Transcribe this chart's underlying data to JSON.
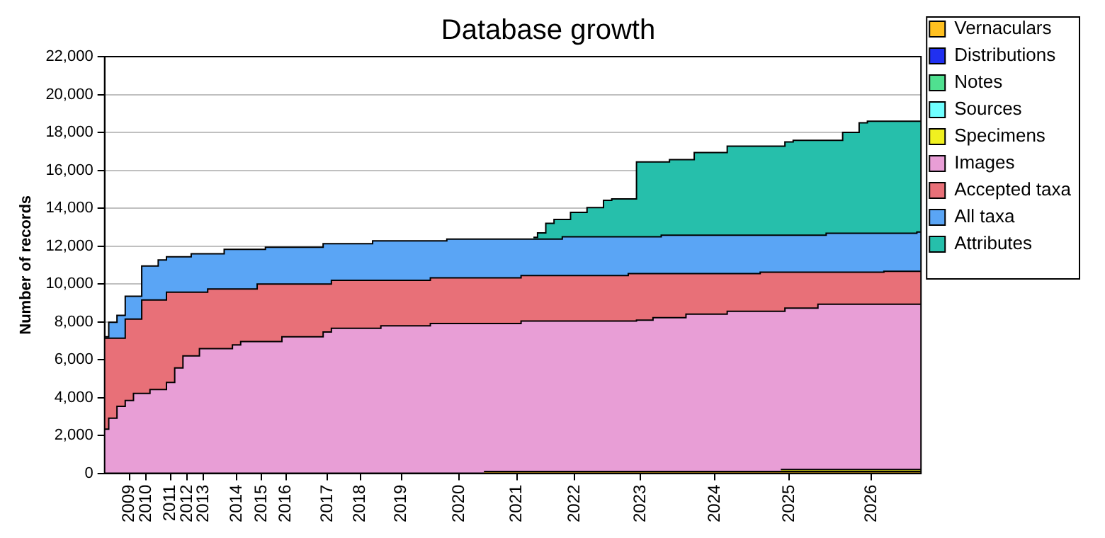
{
  "chart_data": {
    "type": "area",
    "title": "Database growth",
    "ylabel": "Number of records",
    "categories": [
      null,
      null,
      null,
      "2009",
      null,
      "2010",
      null,
      null,
      "2011",
      null,
      "2012",
      null,
      "2013",
      null,
      null,
      null,
      "2014",
      null,
      null,
      "2015",
      null,
      null,
      "2016",
      null,
      null,
      null,
      null,
      "2017",
      null,
      null,
      null,
      "2018",
      null,
      null,
      null,
      null,
      "2019",
      null,
      null,
      null,
      null,
      null,
      null,
      "2020",
      null,
      null,
      null,
      null,
      null,
      null,
      "2021",
      null,
      null,
      null,
      null,
      null,
      null,
      "2022",
      null,
      null,
      null,
      null,
      null,
      null,
      null,
      "2023",
      null,
      null,
      null,
      null,
      null,
      null,
      null,
      null,
      "2024",
      null,
      null,
      null,
      null,
      null,
      null,
      null,
      null,
      "2025",
      null,
      null,
      null,
      null,
      null,
      null,
      null,
      null,
      null,
      "2026",
      null,
      null,
      null,
      null,
      null,
      null
    ],
    "ylim": [
      0,
      22000
    ],
    "yticks": [
      {
        "value": 0,
        "label": "0"
      },
      {
        "value": 2000,
        "label": "2,000"
      },
      {
        "value": 4000,
        "label": "4,000"
      },
      {
        "value": 6000,
        "label": "6,000"
      },
      {
        "value": 8000,
        "label": "8,000"
      },
      {
        "value": 10000,
        "label": "10,000"
      },
      {
        "value": 12000,
        "label": "12,000"
      },
      {
        "value": 14000,
        "label": "14,000"
      },
      {
        "value": 16000,
        "label": "16,000"
      },
      {
        "value": 18000,
        "label": "18,000"
      },
      {
        "value": 20000,
        "label": "20,000"
      },
      {
        "value": 22000,
        "label": "22,000"
      }
    ],
    "grid": "y",
    "legend": "right",
    "series": [
      {
        "name": "Vernaculars",
        "color": "#ffc020",
        "values": [
          null,
          null,
          null,
          null,
          null,
          null,
          null,
          null,
          null,
          null,
          null,
          null,
          null,
          null,
          null,
          null,
          null,
          null,
          null,
          null,
          null,
          null,
          null,
          null,
          null,
          null,
          null,
          null,
          null,
          null,
          null,
          null,
          null,
          null,
          null,
          null,
          null,
          null,
          null,
          null,
          null,
          null,
          null,
          null,
          null,
          null,
          100,
          100,
          100,
          100,
          100,
          100,
          100,
          100,
          100,
          100,
          100,
          100,
          100,
          100,
          100,
          100,
          100,
          100,
          100,
          100,
          100,
          100,
          100,
          100,
          100,
          100,
          100,
          100,
          100,
          100,
          100,
          100,
          100,
          100,
          100,
          100,
          100,
          100,
          100,
          100,
          100,
          100,
          100,
          100,
          100,
          100,
          100,
          100,
          100,
          100,
          100,
          100,
          100,
          100
        ]
      },
      {
        "name": "Distributions",
        "color": "#2030f0",
        "values": [
          null,
          null,
          null,
          null,
          null,
          null,
          null,
          null,
          null,
          null,
          null,
          null,
          null,
          null,
          null,
          null,
          null,
          null,
          null,
          null,
          null,
          null,
          null,
          null,
          null,
          null,
          null,
          null,
          null,
          null,
          null,
          null,
          null,
          null,
          null,
          null,
          null,
          null,
          null,
          null,
          null,
          null,
          null,
          null,
          null,
          null,
          null,
          null,
          null,
          null,
          null,
          null,
          null,
          null,
          null,
          null,
          null,
          null,
          null,
          null,
          null,
          null,
          null,
          null,
          null,
          null,
          null,
          null,
          null,
          null,
          null,
          null,
          null,
          null,
          null,
          null,
          null,
          null,
          null,
          null,
          null,
          null,
          null,
          null,
          null,
          null,
          null,
          null,
          null,
          null,
          null,
          null,
          null,
          null,
          null,
          null,
          null,
          null,
          null,
          null
        ]
      },
      {
        "name": "Notes",
        "color": "#50e090",
        "values": [
          null,
          null,
          null,
          null,
          null,
          null,
          null,
          null,
          null,
          null,
          null,
          null,
          null,
          null,
          null,
          null,
          null,
          null,
          null,
          null,
          null,
          null,
          null,
          null,
          null,
          null,
          null,
          null,
          null,
          null,
          null,
          null,
          null,
          null,
          null,
          null,
          null,
          null,
          null,
          null,
          null,
          null,
          null,
          null,
          null,
          null,
          null,
          null,
          null,
          null,
          null,
          null,
          null,
          null,
          null,
          null,
          null,
          null,
          null,
          null,
          null,
          null,
          null,
          null,
          null,
          null,
          null,
          null,
          null,
          null,
          null,
          null,
          null,
          null,
          null,
          null,
          null,
          null,
          null,
          null,
          null,
          null,
          null,
          null,
          null,
          null,
          null,
          null,
          null,
          null,
          null,
          null,
          null,
          null,
          null,
          null,
          null,
          null,
          null,
          null
        ]
      },
      {
        "name": "Sources",
        "color": "#70ffff",
        "values": [
          null,
          null,
          null,
          null,
          null,
          null,
          null,
          null,
          null,
          null,
          null,
          null,
          null,
          null,
          null,
          null,
          null,
          null,
          null,
          null,
          null,
          null,
          null,
          null,
          null,
          null,
          null,
          null,
          null,
          null,
          null,
          null,
          null,
          null,
          null,
          null,
          null,
          null,
          null,
          null,
          null,
          null,
          null,
          null,
          null,
          null,
          null,
          null,
          null,
          null,
          null,
          null,
          null,
          null,
          null,
          null,
          null,
          null,
          null,
          null,
          null,
          null,
          null,
          null,
          null,
          null,
          null,
          null,
          null,
          null,
          null,
          null,
          null,
          null,
          null,
          null,
          null,
          null,
          null,
          null,
          null,
          null,
          null,
          null,
          null,
          null,
          null,
          null,
          null,
          null,
          null,
          null,
          null,
          null,
          null,
          null,
          null,
          null,
          null,
          null
        ]
      },
      {
        "name": "Specimens",
        "color": "#f0f020",
        "values": [
          null,
          null,
          null,
          null,
          null,
          null,
          null,
          null,
          null,
          null,
          null,
          null,
          null,
          null,
          null,
          null,
          null,
          null,
          null,
          null,
          null,
          null,
          null,
          null,
          null,
          null,
          null,
          null,
          null,
          null,
          null,
          null,
          null,
          null,
          null,
          null,
          null,
          null,
          null,
          null,
          null,
          null,
          null,
          null,
          null,
          null,
          null,
          null,
          null,
          null,
          null,
          null,
          null,
          null,
          null,
          null,
          null,
          null,
          null,
          null,
          null,
          null,
          null,
          null,
          null,
          null,
          null,
          null,
          null,
          null,
          null,
          null,
          null,
          null,
          null,
          null,
          null,
          null,
          null,
          null,
          null,
          null,
          200,
          200,
          200,
          200,
          200,
          200,
          200,
          200,
          200,
          200,
          200,
          200,
          200,
          200,
          200,
          200,
          200,
          200
        ]
      },
      {
        "name": "Images",
        "color": "#e89ed6",
        "values": [
          2330,
          2910,
          3540,
          3840,
          4220,
          4220,
          4420,
          4420,
          4800,
          5560,
          6200,
          6200,
          6580,
          6580,
          6580,
          6580,
          6780,
          6960,
          6960,
          6960,
          6960,
          6960,
          7210,
          7210,
          7210,
          7210,
          7210,
          7460,
          7660,
          7660,
          7660,
          7660,
          7660,
          7660,
          7790,
          7790,
          7790,
          7790,
          7790,
          7790,
          7910,
          7910,
          7910,
          7910,
          7910,
          7910,
          7910,
          7910,
          7910,
          7910,
          7910,
          8040,
          8040,
          8040,
          8040,
          8040,
          8040,
          8040,
          8040,
          8040,
          8040,
          8040,
          8040,
          8040,
          8040,
          8090,
          8090,
          8220,
          8220,
          8220,
          8220,
          8400,
          8400,
          8400,
          8400,
          8400,
          8550,
          8550,
          8550,
          8550,
          8550,
          8550,
          8550,
          8720,
          8720,
          8720,
          8720,
          8930,
          8930,
          8930,
          8930,
          8930,
          8930,
          8930,
          8930,
          8930,
          8930,
          8930,
          8930,
          8930
        ]
      },
      {
        "name": "Accepted taxa",
        "color": "#e87078",
        "values": [
          7130,
          7130,
          7130,
          8140,
          8140,
          9150,
          9150,
          9150,
          9560,
          9560,
          9560,
          9560,
          9560,
          9730,
          9730,
          9730,
          9730,
          9730,
          9730,
          9990,
          9990,
          9990,
          9990,
          9990,
          9990,
          9990,
          9990,
          9990,
          10190,
          10190,
          10190,
          10190,
          10190,
          10190,
          10190,
          10190,
          10190,
          10190,
          10190,
          10190,
          10320,
          10320,
          10320,
          10320,
          10320,
          10320,
          10320,
          10320,
          10320,
          10320,
          10320,
          10440,
          10440,
          10440,
          10440,
          10440,
          10440,
          10440,
          10440,
          10440,
          10440,
          10440,
          10440,
          10440,
          10540,
          10540,
          10540,
          10540,
          10540,
          10540,
          10540,
          10540,
          10540,
          10540,
          10540,
          10540,
          10540,
          10540,
          10540,
          10540,
          10620,
          10620,
          10620,
          10620,
          10620,
          10620,
          10620,
          10620,
          10620,
          10620,
          10620,
          10620,
          10620,
          10620,
          10620,
          10670,
          10670,
          10670,
          10670,
          10670
        ]
      },
      {
        "name": "All taxa",
        "color": "#5aa5f5",
        "values": [
          7210,
          7970,
          8340,
          9350,
          9350,
          10950,
          10950,
          11260,
          11430,
          11430,
          11430,
          11590,
          11590,
          11590,
          11590,
          11820,
          11820,
          11820,
          11820,
          11820,
          11940,
          11940,
          11940,
          11940,
          11940,
          11940,
          11940,
          12120,
          12120,
          12120,
          12120,
          12120,
          12120,
          12270,
          12270,
          12270,
          12270,
          12270,
          12270,
          12270,
          12270,
          12270,
          12370,
          12370,
          12370,
          12370,
          12370,
          12370,
          12370,
          12370,
          12370,
          12370,
          12370,
          12370,
          12370,
          12370,
          12490,
          12490,
          12490,
          12490,
          12490,
          12490,
          12490,
          12490,
          12490,
          12490,
          12490,
          12490,
          12570,
          12570,
          12570,
          12570,
          12570,
          12570,
          12570,
          12570,
          12570,
          12570,
          12570,
          12570,
          12570,
          12570,
          12570,
          12570,
          12570,
          12570,
          12570,
          12570,
          12670,
          12670,
          12670,
          12670,
          12670,
          12670,
          12670,
          12670,
          12670,
          12670,
          12670,
          12740
        ]
      },
      {
        "name": "Attributes",
        "color": "#26bfab",
        "values": [
          null,
          null,
          null,
          null,
          null,
          null,
          null,
          null,
          null,
          null,
          null,
          null,
          null,
          null,
          null,
          null,
          null,
          null,
          null,
          null,
          null,
          null,
          null,
          null,
          null,
          null,
          null,
          null,
          null,
          null,
          null,
          null,
          null,
          null,
          null,
          null,
          null,
          null,
          null,
          null,
          null,
          null,
          null,
          null,
          null,
          null,
          null,
          null,
          null,
          null,
          null,
          null,
          12460,
          12690,
          13200,
          13400,
          13400,
          13780,
          13780,
          14030,
          14030,
          14410,
          14490,
          14490,
          14490,
          16440,
          16440,
          16440,
          16440,
          16560,
          16560,
          16560,
          16940,
          16940,
          16940,
          16940,
          17270,
          17270,
          17270,
          17270,
          17270,
          17270,
          17270,
          17500,
          17580,
          17580,
          17580,
          17580,
          17580,
          17580,
          18000,
          18000,
          18510,
          18590,
          18590,
          18590,
          18590,
          18590,
          18590,
          18590
        ]
      }
    ]
  }
}
